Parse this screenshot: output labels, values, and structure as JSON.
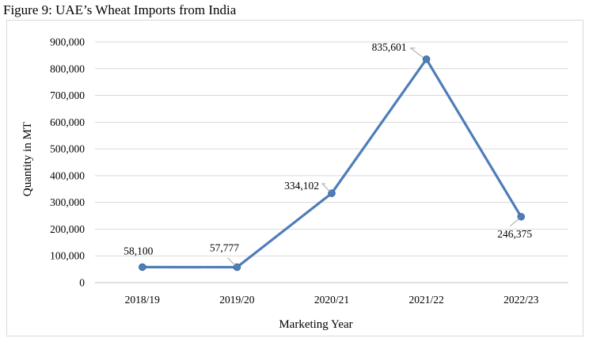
{
  "figure_title": "Figure 9: UAE’s Wheat Imports from India",
  "chart_data": {
    "type": "line",
    "title": "",
    "xlabel": "Marketing Year",
    "ylabel": "Quantity in MT",
    "categories": [
      "2018/19",
      "2019/20",
      "2020/21",
      "2021/22",
      "2022/23"
    ],
    "series": [
      {
        "values": [
          58100,
          57777,
          334102,
          835601,
          246375
        ],
        "labels": [
          "58,100",
          "57,777",
          "334,102",
          "835,601",
          "246,375"
        ],
        "color": "#4f7db8"
      }
    ],
    "ylim": [
      0,
      900000
    ],
    "yticks": [
      0,
      100000,
      200000,
      300000,
      400000,
      500000,
      600000,
      700000,
      800000,
      900000
    ],
    "ytick_labels": [
      "0",
      "100,000",
      "200,000",
      "300,000",
      "400,000",
      "500,000",
      "600,000",
      "700,000",
      "800,000",
      "900,000"
    ],
    "grid": true,
    "legend": "none"
  }
}
